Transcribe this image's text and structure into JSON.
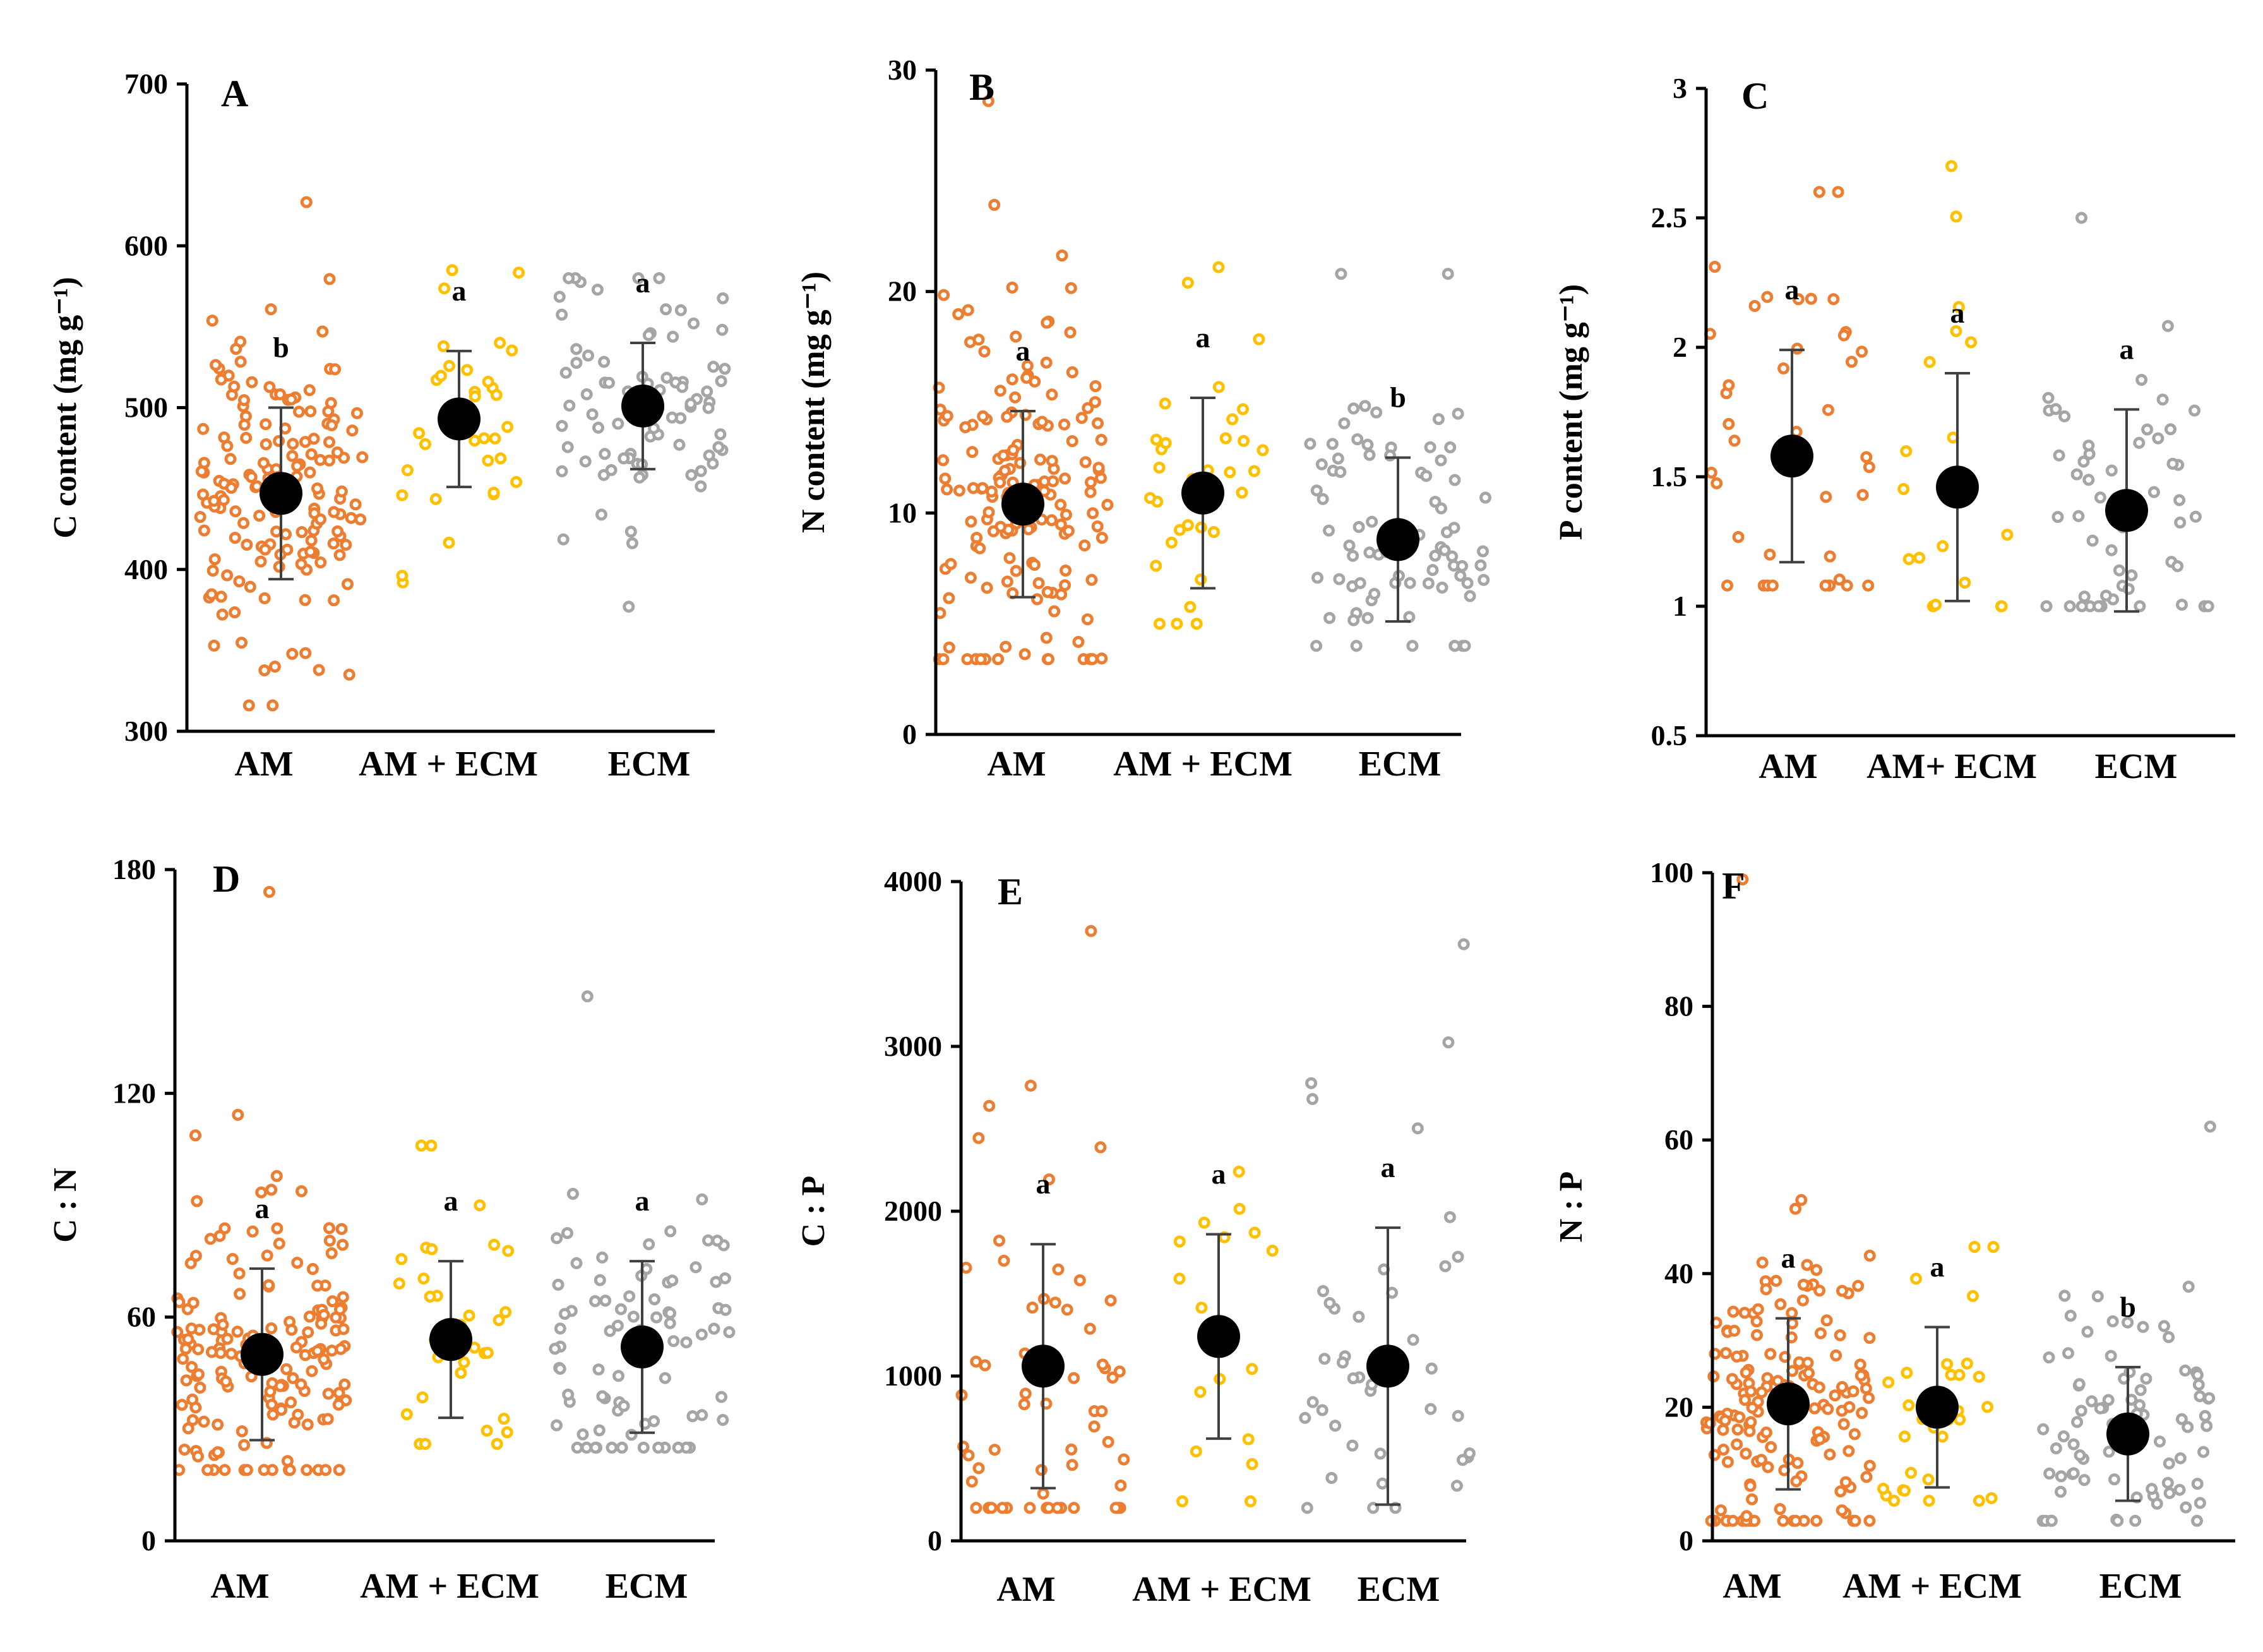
{
  "colors": {
    "AM": "#ed7d31",
    "AM + ECM": "#ffc000",
    "ECM": "#a5a5a5",
    "mean": "#000000",
    "errorbar": "#404040",
    "axis": "#000000"
  },
  "chart_data": [
    {
      "type": "scatter",
      "panel": "A",
      "ylabel": "C content (mg g⁻¹)",
      "ylim": [
        300,
        700
      ],
      "yticks": [
        300,
        400,
        500,
        600,
        700
      ],
      "categories": [
        "AM",
        "AM + ECM",
        "ECM"
      ],
      "means": [
        447,
        493,
        501
      ],
      "sd": [
        53,
        42,
        39
      ],
      "letters": [
        "b",
        "a",
        "a"
      ],
      "point_counts": [
        160,
        32,
        80
      ],
      "point_ranges": [
        [
          316,
          627
        ],
        [
          392,
          585
        ],
        [
          377,
          580
        ]
      ]
    },
    {
      "type": "scatter",
      "panel": "B",
      "ylabel": "N content (mg g⁻¹)",
      "ylim": [
        0,
        30
      ],
      "yticks": [
        0,
        10,
        20,
        30
      ],
      "categories": [
        "AM",
        "AM + ECM",
        "ECM"
      ],
      "means": [
        10.4,
        10.9,
        8.8
      ],
      "sd": [
        4.2,
        4.3,
        3.7
      ],
      "letters": [
        "a",
        "a",
        "b"
      ],
      "point_counts": [
        160,
        32,
        80
      ],
      "point_ranges": [
        [
          3.4,
          28.6
        ],
        [
          5.0,
          21.1
        ],
        [
          4.0,
          20.8
        ]
      ]
    },
    {
      "type": "scatter",
      "panel": "C",
      "ylabel": "P content (mg g⁻¹)",
      "ylim": [
        0.5,
        3
      ],
      "yticks": [
        0.5,
        1,
        1.5,
        2,
        2.5,
        3
      ],
      "categories": [
        "AM",
        "AM+ ECM",
        "ECM"
      ],
      "means": [
        1.58,
        1.46,
        1.37
      ],
      "sd": [
        0.41,
        0.44,
        0.39
      ],
      "letters": [
        "a",
        "a",
        "a"
      ],
      "point_counts": [
        40,
        18,
        55
      ],
      "point_ranges": [
        [
          1.08,
          2.6
        ],
        [
          1.0,
          2.7
        ],
        [
          1.0,
          2.5
        ]
      ]
    },
    {
      "type": "scatter",
      "panel": "D",
      "ylabel": "C : N",
      "ylim": [
        0,
        180
      ],
      "yticks": [
        0,
        60,
        120,
        180
      ],
      "categories": [
        "AM",
        "AM + ECM",
        "ECM"
      ],
      "means": [
        50,
        54,
        52
      ],
      "sd": [
        23,
        21,
        23
      ],
      "letters": [
        "a",
        "a",
        "a"
      ],
      "point_counts": [
        160,
        32,
        80
      ],
      "point_ranges": [
        [
          19,
          174
        ],
        [
          26,
          106
        ],
        [
          25,
          146
        ]
      ]
    },
    {
      "type": "scatter",
      "panel": "E",
      "ylabel": "C : P",
      "ylim": [
        0,
        4000
      ],
      "yticks": [
        0,
        1000,
        2000,
        3000,
        4000
      ],
      "categories": [
        "AM",
        "AM + ECM",
        "ECM"
      ],
      "means": [
        1060,
        1240,
        1060
      ],
      "sd": [
        740,
        620,
        840
      ],
      "letters": [
        "a",
        "a",
        "a"
      ],
      "point_counts": [
        60,
        18,
        40
      ],
      "point_ranges": [
        [
          200,
          3700
        ],
        [
          240,
          2240
        ],
        [
          200,
          3620
        ]
      ]
    },
    {
      "type": "scatter",
      "panel": "F",
      "ylabel": "N : P",
      "ylim": [
        0,
        100
      ],
      "yticks": [
        0,
        20,
        40,
        60,
        80,
        100
      ],
      "categories": [
        "AM",
        "AM + ECM",
        "ECM"
      ],
      "means": [
        20.5,
        20,
        16
      ],
      "sd": [
        12.8,
        12,
        10
      ],
      "letters": [
        "a",
        "a",
        "b"
      ],
      "point_counts": [
        160,
        32,
        80
      ],
      "point_ranges": [
        [
          3,
          99
        ],
        [
          6,
          44
        ],
        [
          3,
          62
        ]
      ]
    }
  ]
}
